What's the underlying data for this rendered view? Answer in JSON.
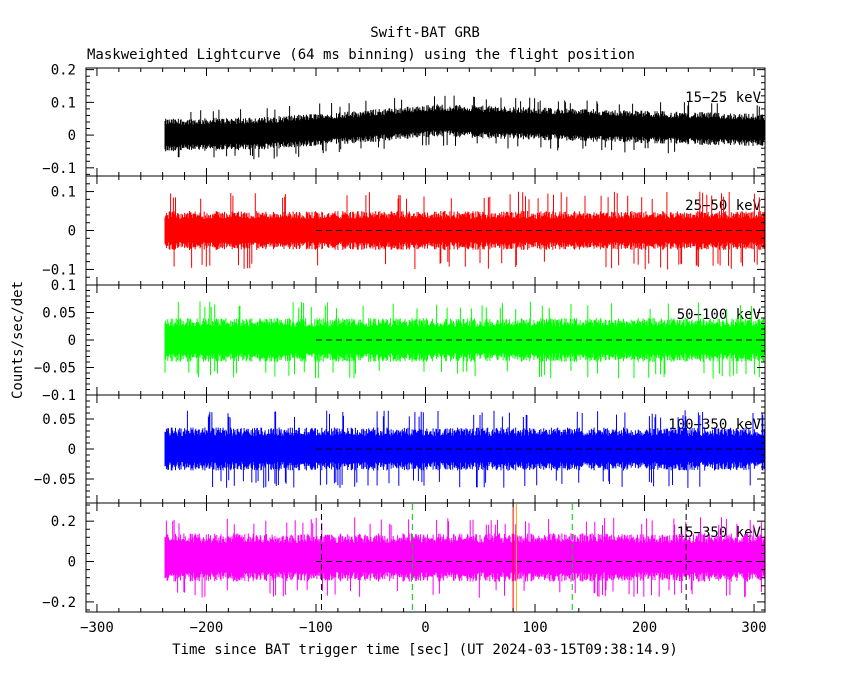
{
  "chart_data": {
    "type": "line",
    "title": "Swift-BAT GRB",
    "subtitle": "Maskweighted Lightcurve (64 ms binning) using the flight position",
    "xlabel": "Time since BAT trigger time [sec] (UT 2024-03-15T09:38:14.9)",
    "ylabel": "Counts/sec/det",
    "xlim": [
      -310,
      310
    ],
    "x_ticks": [
      -300,
      -200,
      -100,
      0,
      100,
      200,
      300
    ],
    "x_tick_labels": [
      "−300",
      "−200",
      "−100",
      "0",
      "100",
      "200",
      "300"
    ],
    "data_start": -238,
    "data_end": 310,
    "bin_seconds": 0.064,
    "panels": [
      {
        "band": "15-25 keV",
        "band_label": "15−25 keV",
        "color": "#000000",
        "ylim": [
          -0.125,
          0.205
        ],
        "y_ticks": [
          -0.1,
          0,
          0.1,
          0.2
        ],
        "y_tick_labels": [
          "−0.1",
          "0",
          "0.1",
          "0.2"
        ],
        "baseline": [
          [
            -238,
            0.0
          ],
          [
            -150,
            0.005
          ],
          [
            -60,
            0.025
          ],
          [
            10,
            0.045
          ],
          [
            100,
            0.035
          ],
          [
            200,
            0.025
          ],
          [
            310,
            0.015
          ]
        ],
        "noise_halfwidth": 0.05,
        "spike_halfwidth": 0.08,
        "zero_line": false
      },
      {
        "band": "25-50 keV",
        "band_label": "25−50 keV",
        "color": "#ff0000",
        "ylim": [
          -0.14,
          0.14
        ],
        "y_ticks": [
          -0.1,
          0,
          0.1
        ],
        "y_tick_labels": [
          "−0.1",
          "0",
          "0.1"
        ],
        "baseline": [
          [
            -238,
            0.0
          ],
          [
            310,
            0.0
          ]
        ],
        "noise_halfwidth": 0.05,
        "spike_halfwidth": 0.1,
        "zero_line": true
      },
      {
        "band": "50-100 keV",
        "band_label": "50−100 keV",
        "color": "#00ff00",
        "ylim": [
          -0.1,
          0.1
        ],
        "y_ticks": [
          -0.1,
          -0.05,
          0,
          0.05,
          0.1
        ],
        "y_tick_labels": [
          "−0.1",
          "−0.05",
          "0",
          "0.05",
          "0.1"
        ],
        "baseline": [
          [
            -238,
            0.0
          ],
          [
            310,
            0.0
          ]
        ],
        "noise_halfwidth": 0.04,
        "spike_halfwidth": 0.07,
        "zero_line": true
      },
      {
        "band": "100-350 keV",
        "band_label": "100−350 keV",
        "color": "#0000ff",
        "ylim": [
          -0.09,
          0.09
        ],
        "y_ticks": [
          -0.05,
          0,
          0.05
        ],
        "y_tick_labels": [
          "−0.05",
          "0",
          "0.05"
        ],
        "baseline": [
          [
            -238,
            0.0
          ],
          [
            310,
            0.0
          ]
        ],
        "noise_halfwidth": 0.036,
        "spike_halfwidth": 0.065,
        "zero_line": true
      },
      {
        "band": "15-350 keV",
        "band_label": "15−350 keV",
        "color": "#ff00ff",
        "ylim": [
          -0.25,
          0.29
        ],
        "y_ticks": [
          -0.2,
          0,
          0.2
        ],
        "y_tick_labels": [
          "−0.2",
          "0",
          "0.2"
        ],
        "baseline": [
          [
            -238,
            0.02
          ],
          [
            310,
            0.02
          ]
        ],
        "noise_halfwidth": 0.12,
        "spike_halfwidth": 0.2,
        "zero_line": true
      }
    ],
    "markers": [
      {
        "x": -95,
        "color": "#000000",
        "style": "dashed"
      },
      {
        "x": -12,
        "color": "#00c800",
        "style": "dashed"
      },
      {
        "x": 80,
        "color": "#ff0000",
        "style": "solid"
      },
      {
        "x": 83,
        "color": "#ffa500",
        "style": "solid"
      },
      {
        "x": 134,
        "color": "#00c800",
        "style": "dashed"
      },
      {
        "x": 238,
        "color": "#000000",
        "style": "dashed"
      }
    ]
  }
}
